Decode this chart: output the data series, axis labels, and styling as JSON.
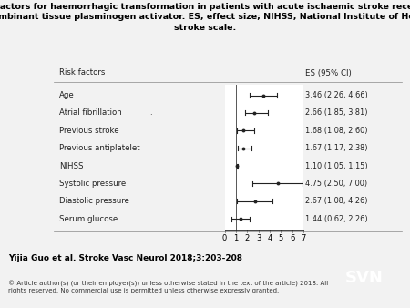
{
  "title_line1": "Risk factors for haemorrhagic transformation in patients with acute ischaemic stroke receiving",
  "title_line2": "recombinant tissue plasminogen activator. ES, effect size; NIHSS, National Institute of Health",
  "title_line3": "stroke scale.",
  "col_header_left": "Risk factors",
  "col_header_right": "ES (95% CI)",
  "factors": [
    "Age",
    "Atrial fibrillation",
    "Previous stroke",
    "Previous antiplatelet",
    "NIHSS",
    "Systolic pressure",
    "Diastolic pressure",
    "Serum glucose"
  ],
  "es": [
    3.46,
    2.66,
    1.68,
    1.67,
    1.1,
    4.75,
    2.67,
    1.44
  ],
  "ci_low": [
    2.26,
    1.85,
    1.08,
    1.17,
    1.05,
    2.5,
    1.08,
    0.62
  ],
  "ci_high": [
    4.66,
    3.81,
    2.6,
    2.38,
    1.15,
    7.0,
    4.26,
    2.26
  ],
  "es_labels": [
    "3.46 (2.26, 4.66)",
    "2.66 (1.85, 3.81)",
    "1.68 (1.08, 2.60)",
    "1.67 (1.17, 2.38)",
    "1.10 (1.05, 1.15)",
    "4.75 (2.50, 7.00)",
    "2.67 (1.08, 4.26)",
    "1.44 (0.62, 2.26)"
  ],
  "xmin": 0,
  "xmax": 7,
  "xticks": [
    0,
    1,
    2,
    3,
    4,
    5,
    6,
    7
  ],
  "vline_x": 1,
  "citation": "Yijia Guo et al. Stroke Vasc Neurol 2018;3:203-208",
  "copyright": "© Article author(s) (or their employer(s)) unless otherwise stated in the text of the article) 2018. All\nrights reserved. No commercial use is permitted unless otherwise expressly granted.",
  "svn_bg": "#1565a8",
  "svn_text": "SVN",
  "bg_color": "#f2f2f2",
  "plot_bg": "#ffffff",
  "line_color": "#222222",
  "dot_color": "#222222",
  "title_fontsize": 6.8,
  "label_fontsize": 6.2,
  "header_fontsize": 6.2,
  "axis_fontsize": 6.0,
  "citation_fontsize": 6.5,
  "copyright_fontsize": 5.0
}
